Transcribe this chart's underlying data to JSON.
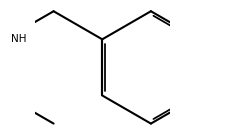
{
  "background": "#ffffff",
  "line_color": "#000000",
  "line_width": 1.5,
  "figsize": [
    2.3,
    1.32
  ],
  "dpi": 100
}
